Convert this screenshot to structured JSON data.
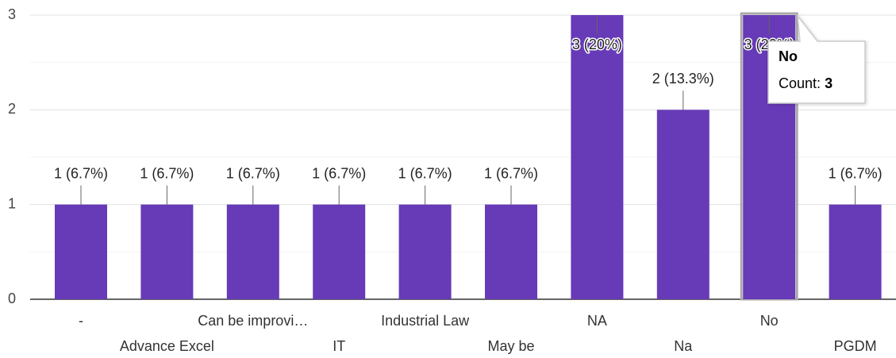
{
  "chart_data": {
    "type": "bar",
    "categories": [
      "-",
      "Advance Excel",
      "Can be improvi…",
      "IT",
      "Industrial Law",
      "May be",
      "NA",
      "Na",
      "No",
      "PGDM"
    ],
    "values": [
      1,
      1,
      1,
      1,
      1,
      1,
      3,
      2,
      3,
      1
    ],
    "value_labels": [
      "1 (6.7%)",
      "1 (6.7%)",
      "1 (6.7%)",
      "1 (6.7%)",
      "1 (6.7%)",
      "1 (6.7%)",
      "3 (20%)",
      "2 (13.3%)",
      "3 (20%)",
      "1 (6.7%)"
    ],
    "color": "#673ab7",
    "ylim": [
      0,
      3
    ],
    "yticks": [
      0,
      1,
      2,
      3
    ],
    "grid": true,
    "minor_grid": true,
    "tooltip": {
      "category_index": 8,
      "label": "Count:"
    }
  }
}
